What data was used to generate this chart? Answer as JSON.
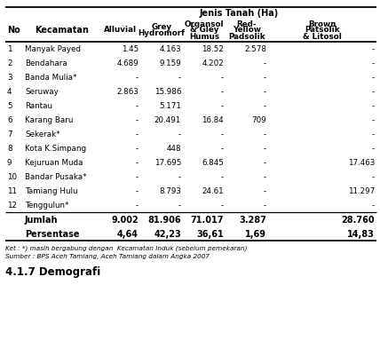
{
  "title": "Jenis Tanah (Ha)",
  "rows": [
    [
      "1",
      "Manyak Payed",
      "1.45",
      "4.163",
      "18.52",
      "2.578",
      "-"
    ],
    [
      "2",
      "Bendahara",
      "4.689",
      "9.159",
      "4.202",
      "-",
      "-"
    ],
    [
      "3",
      "Banda Mulia*",
      "-",
      "-",
      "-",
      "-",
      "-"
    ],
    [
      "4",
      "Seruway",
      "2.863",
      "15.986",
      "-",
      "-",
      "-"
    ],
    [
      "5",
      "Rantau",
      "-",
      "5.171",
      "-",
      "-",
      "-"
    ],
    [
      "6",
      "Karang Baru",
      "-",
      "20.491",
      "16.84",
      "709",
      "-"
    ],
    [
      "7",
      "Sekerak*",
      "-",
      "-",
      "-",
      "-",
      "-"
    ],
    [
      "8",
      "Kota K.Simpang",
      "-",
      "448",
      "-",
      "-",
      "-"
    ],
    [
      "9",
      "Kejuruan Muda",
      "-",
      "17.695",
      "6.845",
      "-",
      "17.463"
    ],
    [
      "10",
      "Bandar Pusaka*",
      "-",
      "-",
      "-",
      "-",
      "-"
    ],
    [
      "11",
      "Tamiang Hulu",
      "-",
      "8.793",
      "24.61",
      "-",
      "11.297"
    ],
    [
      "12",
      "Tenggulun*",
      "-",
      "-",
      "-",
      "-",
      "-"
    ]
  ],
  "jumlah": [
    "",
    "Jumlah",
    "9.002",
    "81.906",
    "71.017",
    "3.287",
    "28.760"
  ],
  "persentase": [
    "",
    "Persentase",
    "4,64",
    "42,23",
    "36,61",
    "1,69",
    "14,83"
  ],
  "col2_headers": [
    "Alluvial",
    "Grey\nHydromorf",
    "Organsol\n& Gley\nHumus",
    "Red-\nYellow\nPadsolik",
    "Brown\nPatsolik\n& Litosol"
  ],
  "footnote1": "Ket : *) masih bergabung dengan  Kecamatan Induk (sebelum pemekaran)",
  "footnote2": "Sumber : BPS Aceh Tamiang, Aceh Tamiang dalam Angka 2007",
  "bottom_text": "4.1.7 Demografi",
  "bg_color": "#ffffff",
  "text_color": "#000000"
}
